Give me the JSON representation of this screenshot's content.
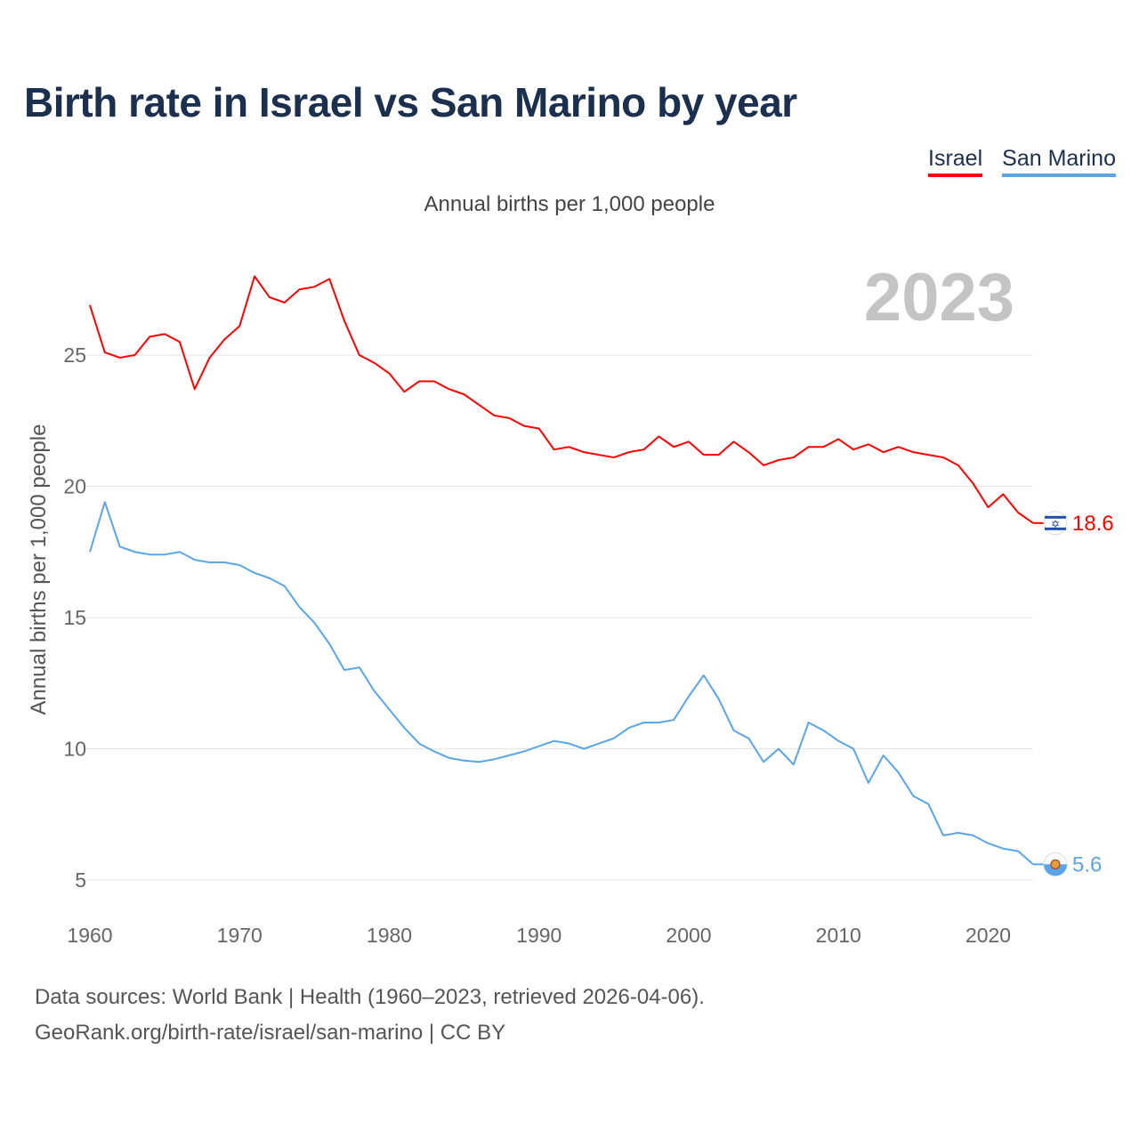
{
  "title": "Birth rate in Israel vs San Marino by year",
  "subtitle": "Annual births per 1,000 people",
  "legend": [
    {
      "label": "Israel",
      "color": "#ff0000"
    },
    {
      "label": "San Marino",
      "color": "#5aa5e8"
    }
  ],
  "year_badge": "2023",
  "footer": {
    "line1": "Data sources: World Bank | Health (1960–2023, retrieved 2026-04-06).",
    "line2": "GeoRank.org/birth-rate/israel/san-marino | CC BY"
  },
  "chart_data": {
    "type": "line",
    "title": "Birth rate in Israel vs San Marino by year",
    "xlabel": "",
    "ylabel": "Annual births per 1,000 people",
    "xlim": [
      1960,
      2023
    ],
    "ylim": [
      3.5,
      28.5
    ],
    "x_ticks": [
      "1960",
      "1970",
      "1980",
      "1990",
      "2000",
      "2010",
      "2020"
    ],
    "y_ticks": [
      "5",
      "10",
      "15",
      "20",
      "25"
    ],
    "grid": true,
    "x": [
      1960,
      1961,
      1962,
      1963,
      1964,
      1965,
      1966,
      1967,
      1968,
      1969,
      1970,
      1971,
      1972,
      1973,
      1974,
      1975,
      1976,
      1977,
      1978,
      1979,
      1980,
      1981,
      1982,
      1983,
      1984,
      1985,
      1986,
      1987,
      1988,
      1989,
      1990,
      1991,
      1992,
      1993,
      1994,
      1995,
      1996,
      1997,
      1998,
      1999,
      2000,
      2001,
      2002,
      2003,
      2004,
      2005,
      2006,
      2007,
      2008,
      2009,
      2010,
      2011,
      2012,
      2013,
      2014,
      2015,
      2016,
      2017,
      2018,
      2019,
      2020,
      2021,
      2022,
      2023
    ],
    "series": [
      {
        "name": "Israel",
        "color": "#ff0000",
        "end_label": "18.6",
        "values": [
          26.9,
          25.1,
          24.9,
          25.0,
          25.7,
          25.8,
          25.5,
          23.7,
          24.9,
          25.6,
          26.1,
          28.0,
          27.2,
          27.0,
          27.5,
          27.6,
          27.9,
          26.3,
          25.0,
          24.7,
          24.3,
          23.6,
          24.0,
          24.0,
          23.7,
          23.5,
          23.1,
          22.7,
          22.6,
          22.3,
          22.2,
          21.4,
          21.5,
          21.3,
          21.2,
          21.1,
          21.3,
          21.4,
          21.9,
          21.5,
          21.7,
          21.2,
          21.2,
          21.7,
          21.3,
          20.8,
          21.0,
          21.1,
          21.5,
          21.5,
          21.8,
          21.4,
          21.6,
          21.3,
          21.5,
          21.3,
          21.2,
          21.1,
          20.8,
          20.1,
          19.2,
          19.7,
          19.0,
          18.6
        ]
      },
      {
        "name": "San Marino",
        "color": "#5aa5e8",
        "end_label": "5.6",
        "values": [
          17.5,
          19.4,
          17.7,
          17.5,
          17.4,
          17.4,
          17.5,
          17.2,
          17.1,
          17.1,
          17.0,
          16.7,
          16.5,
          16.2,
          15.4,
          14.8,
          14.0,
          13.0,
          13.1,
          12.2,
          11.5,
          10.8,
          10.2,
          9.9,
          9.65,
          9.55,
          9.5,
          9.6,
          9.75,
          9.9,
          10.1,
          10.3,
          10.2,
          10.0,
          10.2,
          10.4,
          10.8,
          11.0,
          11.0,
          11.1,
          12.0,
          12.8,
          11.9,
          10.7,
          10.4,
          9.5,
          10.0,
          9.4,
          11.0,
          10.7,
          10.3,
          10.0,
          8.7,
          9.75,
          9.1,
          8.2,
          7.9,
          6.7,
          6.8,
          6.7,
          6.4,
          6.2,
          6.1,
          5.6
        ]
      }
    ]
  }
}
